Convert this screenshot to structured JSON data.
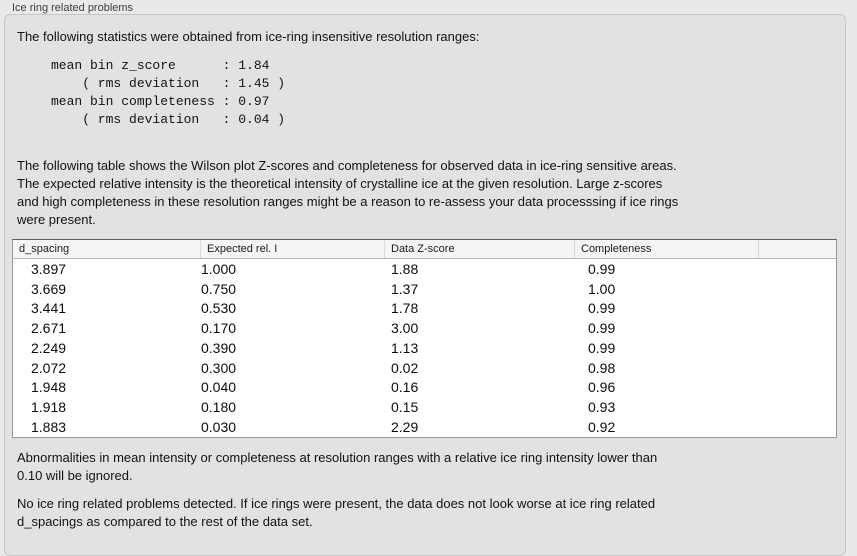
{
  "group": {
    "label": "Ice ring related problems"
  },
  "intro": "The following statistics were obtained from ice-ring insensitive resolution ranges:",
  "stats_block": "mean bin z_score      : 1.84\n    ( rms deviation   : 1.45 )\nmean bin completeness : 0.97\n    ( rms deviation   : 0.04 )",
  "stats": {
    "mean_bin_z_score": "1.84",
    "z_score_rms_deviation": "1.45",
    "mean_bin_completeness": "0.97",
    "completeness_rms_deviation": "0.04"
  },
  "table_intro": "The following table shows the Wilson plot Z-scores and completeness for observed data in ice-ring sensitive areas.\nThe expected relative intensity is the theoretical intensity of crystalline ice at the given resolution. Large z-scores\nand high completeness in these resolution ranges might be a reason to re-assess your data processsing if ice rings\nwere present.",
  "table": {
    "columns": [
      "d_spacing",
      "Expected rel. I",
      "Data Z-score",
      "Completeness",
      ""
    ],
    "rows": [
      [
        "3.897",
        "1.000",
        "1.88",
        "0.99"
      ],
      [
        "3.669",
        "0.750",
        "1.37",
        "1.00"
      ],
      [
        "3.441",
        "0.530",
        "1.78",
        "0.99"
      ],
      [
        "2.671",
        "0.170",
        "3.00",
        "0.99"
      ],
      [
        "2.249",
        "0.390",
        "1.13",
        "0.99"
      ],
      [
        "2.072",
        "0.300",
        "0.02",
        "0.98"
      ],
      [
        "1.948",
        "0.040",
        "0.16",
        "0.96"
      ],
      [
        "1.918",
        "0.180",
        "0.15",
        "0.93"
      ],
      [
        "1.883",
        "0.030",
        "2.29",
        "0.92"
      ]
    ]
  },
  "note_ignore": "Abnormalities in mean intensity or completeness at resolution ranges with a relative ice ring intensity lower than\n0.10 will be ignored.",
  "conclusion": "No ice ring related problems detected. If ice rings were present, the data does not look worse at ice ring related\nd_spacings as compared to the rest of the data set."
}
